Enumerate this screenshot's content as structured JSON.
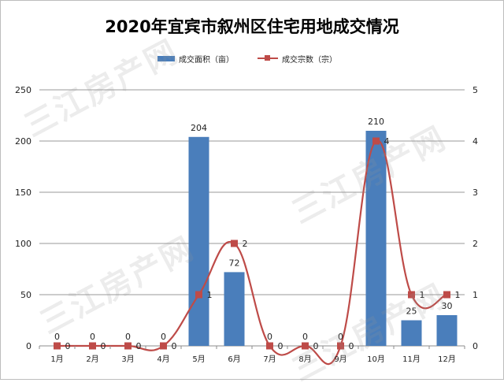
{
  "chart_data": {
    "type": "bar",
    "title": "2020年宜宾市叙州区住宅用地成交情况",
    "categories": [
      "1月",
      "2月",
      "3月",
      "4月",
      "5月",
      "6月",
      "7月",
      "8月",
      "9月",
      "10月",
      "11月",
      "12月"
    ],
    "series": [
      {
        "name": "成交面积（亩）",
        "type": "bar",
        "axis": "left",
        "color": "#4a7ebb",
        "values": [
          0,
          0,
          0,
          0,
          204,
          72,
          0,
          0,
          0,
          210,
          25,
          30
        ]
      },
      {
        "name": "成交宗数（宗）",
        "type": "line",
        "axis": "right",
        "color": "#be4b48",
        "values": [
          0,
          0,
          0,
          0,
          1,
          2,
          0,
          0,
          0,
          4,
          1,
          1
        ]
      }
    ],
    "ylim_left": [
      0,
      250
    ],
    "yticks_left": [
      0,
      50,
      100,
      150,
      200,
      250
    ],
    "ylim_right": [
      0,
      5
    ],
    "yticks_right": [
      0,
      1,
      2,
      3,
      4,
      5
    ],
    "grid": true,
    "legend_position": "top-center"
  },
  "watermark": "三江房产网"
}
